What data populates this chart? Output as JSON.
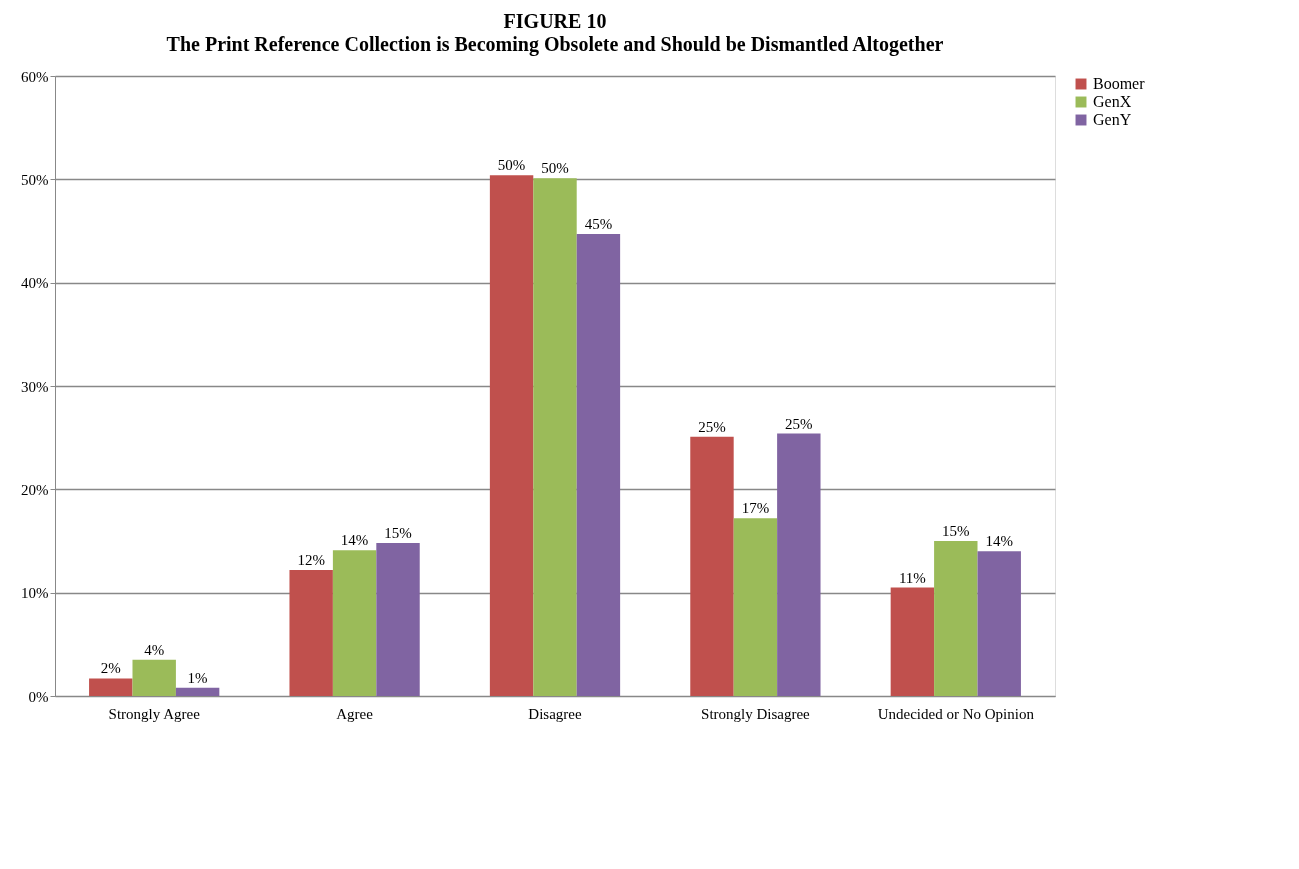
{
  "chart_data": {
    "type": "bar",
    "title": "FIGURE 10",
    "subtitle": "The Print Reference Collection is Becoming Obsolete and Should be Dismantled Altogether",
    "categories": [
      "Strongly Agree",
      "Agree",
      "Disagree",
      "Strongly Disagree",
      "Undecided or No Opinion"
    ],
    "series": [
      {
        "name": "Boomer",
        "color": "#c0504d",
        "values": [
          1.7,
          12.2,
          50.4,
          25.1,
          10.5
        ],
        "value_labels": [
          "2%",
          "12%",
          "50%",
          "25%",
          "11%"
        ]
      },
      {
        "name": "GenX",
        "color": "#9bbb59",
        "values": [
          3.5,
          14.1,
          50.1,
          17.2,
          15.0
        ],
        "value_labels": [
          "4%",
          "14%",
          "50%",
          "17%",
          "15%"
        ]
      },
      {
        "name": "GenY",
        "color": "#8064a2",
        "values": [
          0.8,
          14.8,
          44.7,
          25.4,
          14.0
        ],
        "value_labels": [
          "1%",
          "15%",
          "45%",
          "25%",
          "14%"
        ]
      }
    ],
    "ylim": [
      0,
      60
    ],
    "yticks": [
      {
        "value": 0,
        "label": "0%"
      },
      {
        "value": 10,
        "label": "10%"
      },
      {
        "value": 20,
        "label": "20%"
      },
      {
        "value": 30,
        "label": "30%"
      },
      {
        "value": 40,
        "label": "40%"
      },
      {
        "value": 50,
        "label": "50%"
      },
      {
        "value": 60,
        "label": "60%"
      }
    ],
    "grid": "y",
    "legend": "right"
  }
}
